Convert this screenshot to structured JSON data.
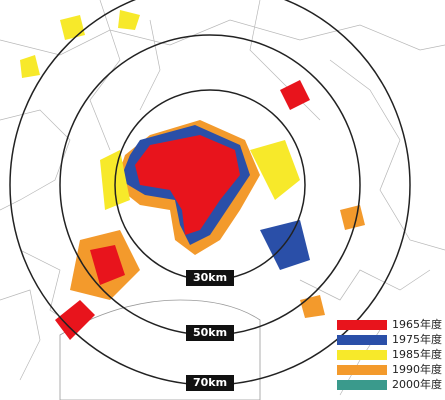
{
  "rings": [
    {
      "label": "30km"
    },
    {
      "label": "50km"
    },
    {
      "label": "70km"
    }
  ],
  "legend": [
    {
      "label": "1965年度",
      "color": "#e8141c"
    },
    {
      "label": "1975年度",
      "color": "#2a4fa8"
    },
    {
      "label": "1985年度",
      "color": "#f7e92a"
    },
    {
      "label": "1990年度",
      "color": "#f39a2c"
    },
    {
      "label": "2000年度",
      "color": "#3a9a8c"
    }
  ]
}
